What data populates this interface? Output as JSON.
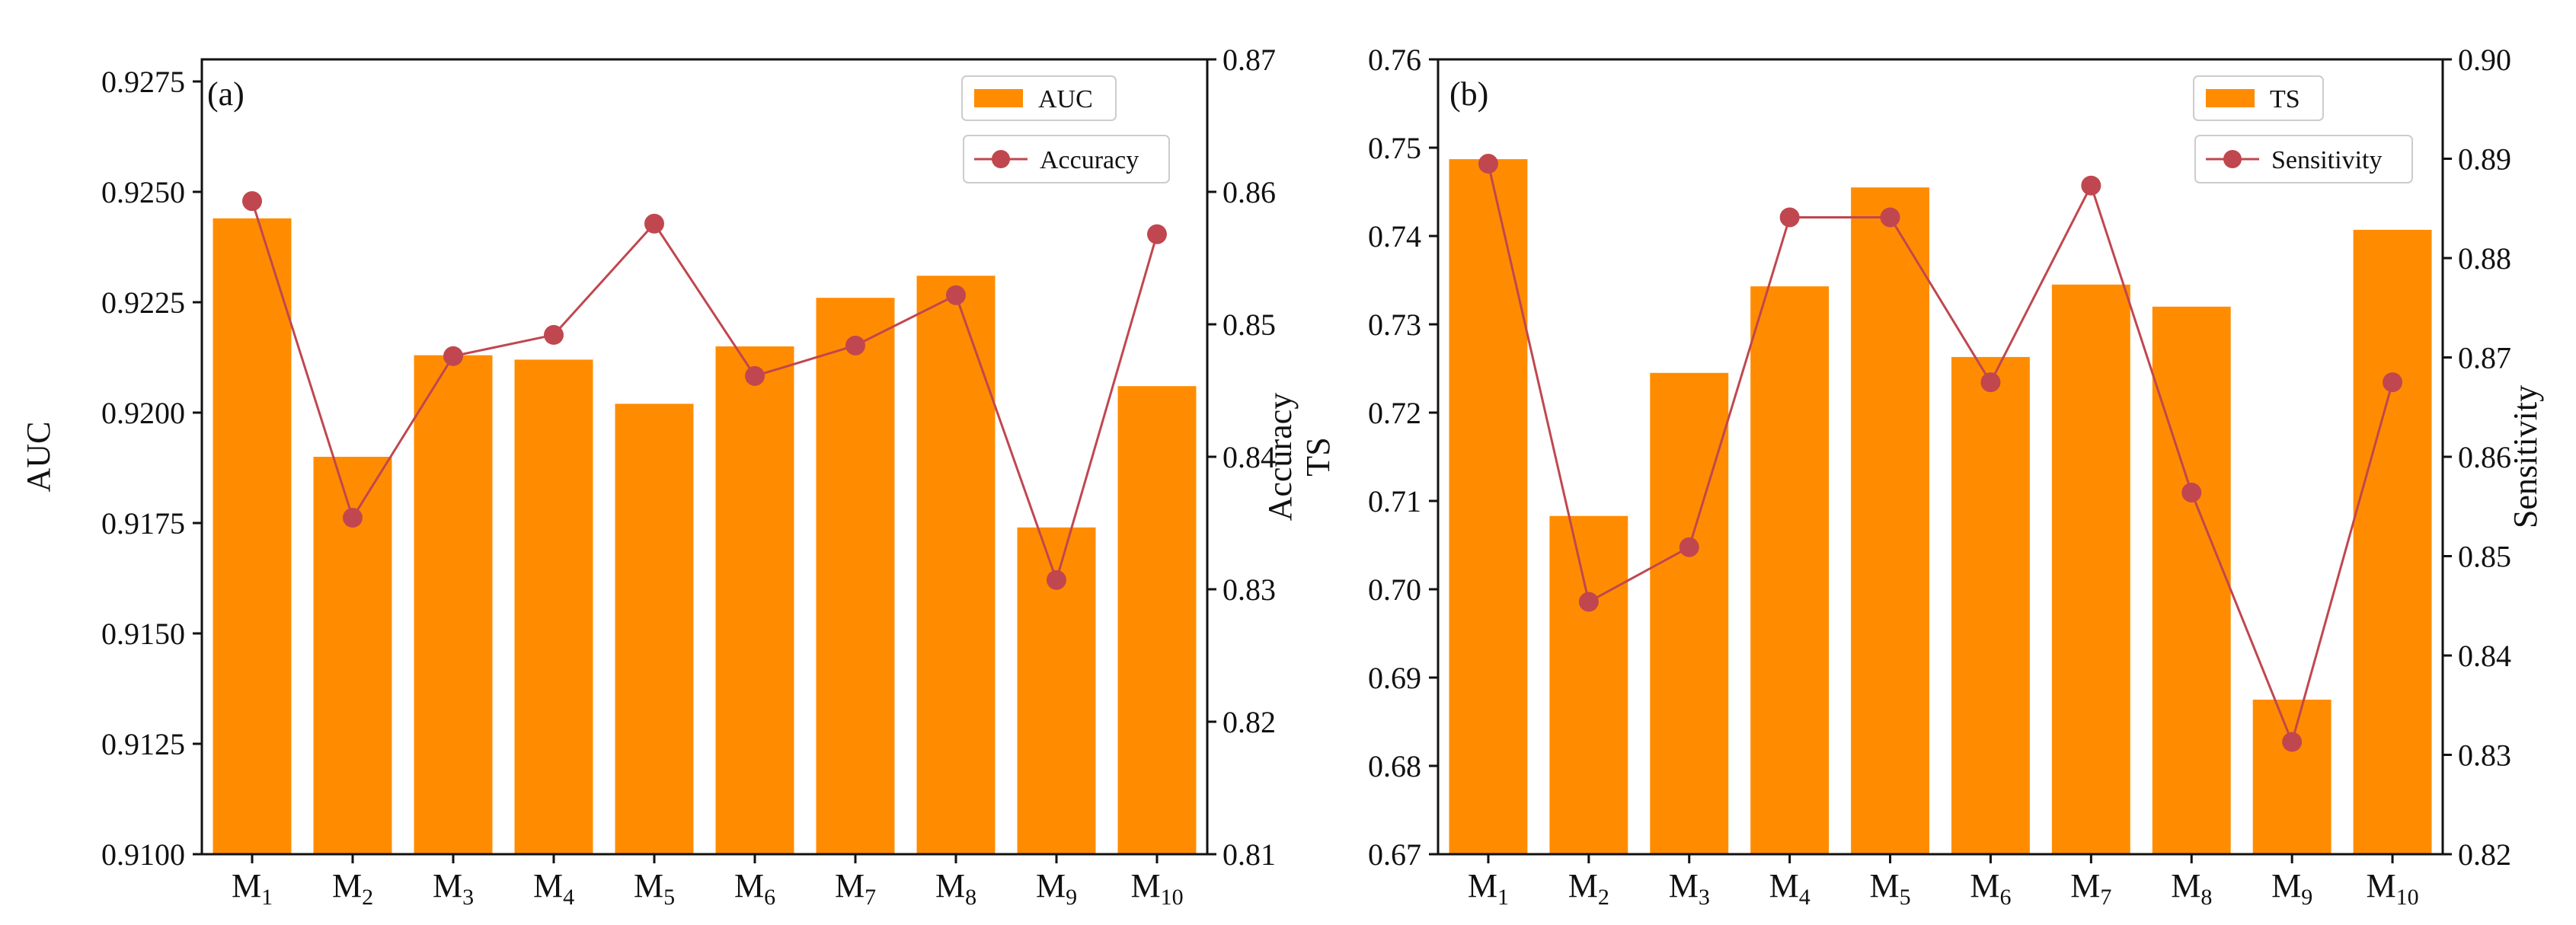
{
  "chart_data": [
    {
      "panel_label": "(a)",
      "type": "bar+line",
      "categories": [
        {
          "base": "M",
          "sub": "1"
        },
        {
          "base": "M",
          "sub": "2"
        },
        {
          "base": "M",
          "sub": "3"
        },
        {
          "base": "M",
          "sub": "4"
        },
        {
          "base": "M",
          "sub": "5"
        },
        {
          "base": "M",
          "sub": "6"
        },
        {
          "base": "M",
          "sub": "7"
        },
        {
          "base": "M",
          "sub": "8"
        },
        {
          "base": "M",
          "sub": "9"
        },
        {
          "base": "M",
          "sub": "10"
        }
      ],
      "bar_series": {
        "name": "AUC",
        "values": [
          0.9244,
          0.919,
          0.9213,
          0.9212,
          0.9202,
          0.9215,
          0.9226,
          0.9231,
          0.9174,
          0.9206
        ]
      },
      "line_series": {
        "name": "Accuracy",
        "values": [
          0.8593,
          0.8354,
          0.8476,
          0.8492,
          0.8576,
          0.8461,
          0.8484,
          0.8522,
          0.8307,
          0.8568
        ]
      },
      "left_axis": {
        "label": "AUC",
        "ylim": [
          0.91,
          0.928
        ],
        "ticks": [
          "0.9100",
          "0.9125",
          "0.9150",
          "0.9175",
          "0.9200",
          "0.9225",
          "0.9250",
          "0.9275"
        ]
      },
      "right_axis": {
        "label": "Accuracy",
        "ylim": [
          0.81,
          0.87
        ],
        "ticks": [
          "0.81",
          "0.82",
          "0.83",
          "0.84",
          "0.85",
          "0.86",
          "0.87"
        ]
      },
      "legend": [
        "AUC",
        "Accuracy"
      ],
      "legend_position": "top-right"
    },
    {
      "panel_label": "(b)",
      "type": "bar+line",
      "categories": [
        {
          "base": "M",
          "sub": "1"
        },
        {
          "base": "M",
          "sub": "2"
        },
        {
          "base": "M",
          "sub": "3"
        },
        {
          "base": "M",
          "sub": "4"
        },
        {
          "base": "M",
          "sub": "5"
        },
        {
          "base": "M",
          "sub": "6"
        },
        {
          "base": "M",
          "sub": "7"
        },
        {
          "base": "M",
          "sub": "8"
        },
        {
          "base": "M",
          "sub": "9"
        },
        {
          "base": "M",
          "sub": "10"
        }
      ],
      "bar_series": {
        "name": "TS",
        "values": [
          0.7487,
          0.7083,
          0.7245,
          0.7343,
          0.7455,
          0.7263,
          0.7345,
          0.732,
          0.6875,
          0.7407
        ]
      },
      "line_series": {
        "name": "Sensitivity",
        "values": [
          0.8895,
          0.8454,
          0.8509,
          0.8841,
          0.8841,
          0.8675,
          0.8873,
          0.8564,
          0.8313,
          0.8675
        ]
      },
      "left_axis": {
        "label": "TS",
        "ylim": [
          0.67,
          0.76
        ],
        "ticks": [
          "0.67",
          "0.68",
          "0.69",
          "0.70",
          "0.71",
          "0.72",
          "0.73",
          "0.74",
          "0.75",
          "0.76"
        ]
      },
      "right_axis": {
        "label": "Sensitivity",
        "ylim": [
          0.82,
          0.9
        ],
        "ticks": [
          "0.82",
          "0.83",
          "0.84",
          "0.85",
          "0.86",
          "0.87",
          "0.88",
          "0.89",
          "0.90"
        ]
      },
      "legend": [
        "TS",
        "Sensitivity"
      ],
      "legend_position": "top-right"
    }
  ],
  "colors": {
    "bar": "#ff8c00",
    "line": "#c0474f",
    "marker": "#c0474f",
    "axis": "#111111"
  }
}
